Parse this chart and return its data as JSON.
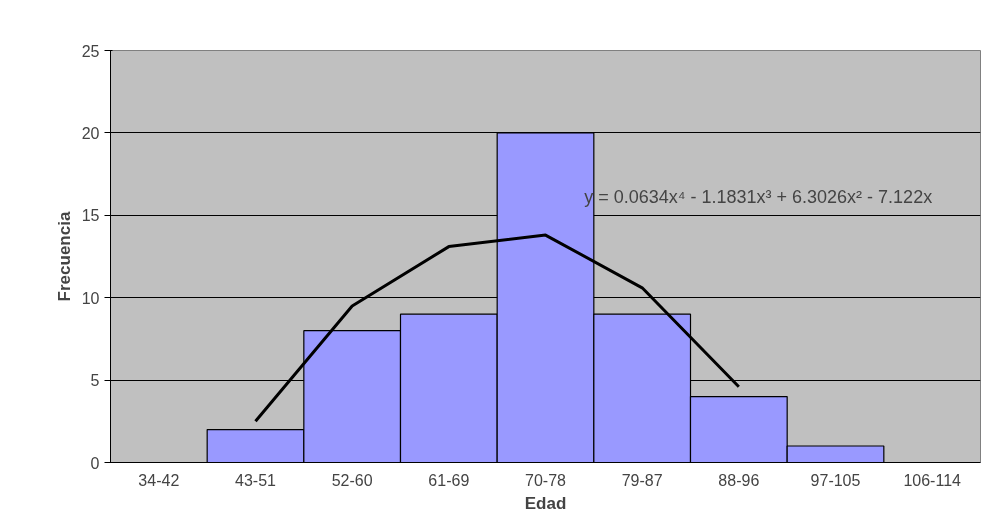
{
  "chart_data": {
    "type": "bar",
    "xlabel": "Edad",
    "ylabel": "Frecuencia",
    "categories": [
      "34-42",
      "43-51",
      "52-60",
      "61-69",
      "70-78",
      "79-87",
      "88-96",
      "97-105",
      "106-114"
    ],
    "series": [
      {
        "color": "#9999ff",
        "values": [
          0,
          2,
          8,
          9,
          20,
          9,
          4,
          1,
          0
        ]
      },
      {
        "type": "line",
        "color": "#000000",
        "values": [
          null,
          2.5,
          9.5,
          13.1,
          13.8,
          10.6,
          4.6,
          null,
          null
        ]
      }
    ],
    "ylim": [
      0,
      25
    ],
    "yticks": [
      0,
      5,
      10,
      15,
      20,
      25
    ],
    "grid": "y",
    "annotations": [
      "y = 0.0634x⁴ - 1.1831x³ + 6.3026x² - 7.122x"
    ]
  }
}
